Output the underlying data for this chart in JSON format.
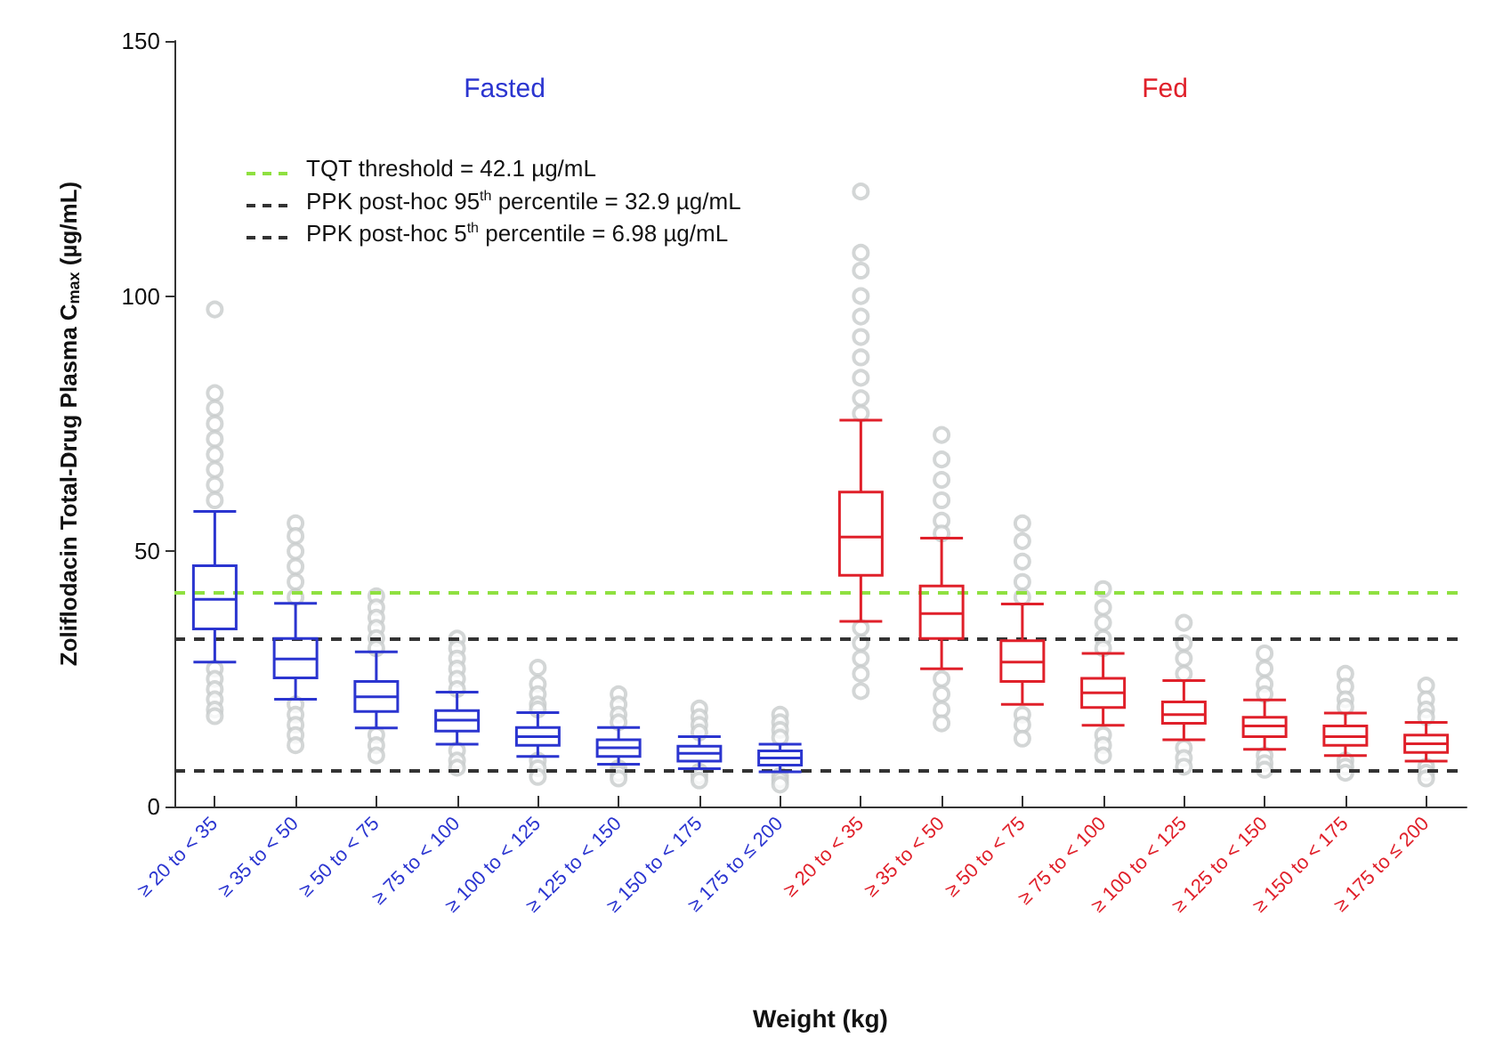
{
  "chart_data": {
    "type": "box",
    "xlabel": "Weight (kg)",
    "ylabel": "Zoliflodacin Total-Drug Plasma C$_{max}$ (µg/mL)",
    "categories": [
      "≥ 20 to < 35",
      "≥ 35 to < 50",
      "≥ 50 to < 75",
      "≥ 75 to < 100",
      "≥ 100 to < 125",
      "≥ 125 to < 150",
      "≥ 150 to < 175",
      "≥ 175 to ≤ 200",
      "≥ 20 to < 35",
      "≥ 35 to < 50",
      "≥ 50 to < 75",
      "≥ 75 to < 100",
      "≥ 100 to < 125",
      "≥ 125 to < 150",
      "≥ 150 to < 175",
      "≥ 175 to ≤ 200"
    ],
    "colors": [
      "#2b35d0",
      "#2b35d0",
      "#2b35d0",
      "#2b35d0",
      "#2b35d0",
      "#2b35d0",
      "#2b35d0",
      "#2b35d0",
      "#e0202a",
      "#e0202a",
      "#e0202a",
      "#e0202a",
      "#e0202a",
      "#e0202a",
      "#e0202a",
      "#e0202a"
    ],
    "boxes": [
      {
        "low": 28.3,
        "q1": 34.8,
        "median": 40.6,
        "q3": 47.2,
        "high": 57.8,
        "outliers": [
          97.4,
          81,
          78,
          75,
          72,
          69,
          66,
          63,
          60,
          27,
          25,
          23,
          21,
          19,
          17.7
        ]
      },
      {
        "low": 21.0,
        "q1": 25.2,
        "median": 28.9,
        "q3": 32.9,
        "high": 39.8,
        "outliers": [
          55.5,
          53,
          50,
          47,
          44,
          41,
          20,
          18,
          16,
          14,
          12
        ]
      },
      {
        "low": 15.4,
        "q1": 18.6,
        "median": 21.5,
        "q3": 24.5,
        "high": 30.3,
        "outliers": [
          41.2,
          39,
          37,
          35,
          33,
          31,
          14,
          12,
          10
        ]
      },
      {
        "low": 12.2,
        "q1": 14.8,
        "median": 16.9,
        "q3": 18.8,
        "high": 22.4,
        "outliers": [
          32.9,
          31,
          29,
          27,
          25,
          23,
          11,
          9,
          7.6
        ]
      },
      {
        "low": 9.8,
        "q1": 12.0,
        "median": 13.7,
        "q3": 15.5,
        "high": 18.4,
        "outliers": [
          27.2,
          24,
          22,
          20,
          19,
          9,
          7.5,
          5.8
        ]
      },
      {
        "low": 8.3,
        "q1": 9.8,
        "median": 11.5,
        "q3": 13.1,
        "high": 15.5,
        "outliers": [
          22,
          20,
          18,
          16.5,
          7.5,
          6.5,
          5.5
        ]
      },
      {
        "low": 7.4,
        "q1": 8.9,
        "median": 10.4,
        "q3": 11.8,
        "high": 13.7,
        "outliers": [
          19.2,
          17.5,
          16,
          14.5,
          6.8,
          6,
          5.1
        ]
      },
      {
        "low": 6.8,
        "q1": 8.1,
        "median": 9.5,
        "q3": 10.9,
        "high": 12.2,
        "outliers": [
          18,
          16.5,
          15,
          13.5,
          6,
          5.2,
          4.3
        ]
      },
      {
        "low": 36.3,
        "q1": 45.3,
        "median": 52.8,
        "q3": 61.6,
        "high": 75.7,
        "outliers": [
          120.5,
          108.5,
          105,
          100,
          96,
          92,
          88,
          84,
          80,
          77,
          35,
          32,
          29,
          26,
          22.6
        ]
      },
      {
        "low": 27.0,
        "q1": 32.9,
        "median": 37.8,
        "q3": 43.2,
        "high": 52.6,
        "outliers": [
          72.8,
          68,
          64,
          60,
          56,
          53.5,
          25,
          22,
          19,
          16.3
        ]
      },
      {
        "low": 20.0,
        "q1": 24.5,
        "median": 28.3,
        "q3": 32.5,
        "high": 39.7,
        "outliers": [
          55.5,
          52,
          48,
          44,
          41,
          18,
          16,
          13.3
        ]
      },
      {
        "low": 15.9,
        "q1": 19.4,
        "median": 22.3,
        "q3": 25.1,
        "high": 30.0,
        "outliers": [
          42.6,
          39,
          36,
          33,
          31,
          14,
          12,
          10
        ]
      },
      {
        "low": 13.1,
        "q1": 16.3,
        "median": 18.0,
        "q3": 20.5,
        "high": 24.7,
        "outliers": [
          36,
          32,
          29,
          26,
          11.5,
          9.5,
          7.8
        ]
      },
      {
        "low": 11.2,
        "q1": 13.7,
        "median": 15.8,
        "q3": 17.5,
        "high": 20.9,
        "outliers": [
          30,
          27,
          24,
          22,
          10,
          8.5,
          7.2
        ]
      },
      {
        "low": 10.0,
        "q1": 12.0,
        "median": 13.7,
        "q3": 15.8,
        "high": 18.3,
        "outliers": [
          26,
          23.5,
          21,
          19.5,
          9,
          7.8,
          6.6
        ]
      },
      {
        "low": 8.9,
        "q1": 10.6,
        "median": 12.3,
        "q3": 14.0,
        "high": 16.5,
        "outliers": [
          23.7,
          21,
          19,
          17.5,
          7.8,
          6.6,
          5.5
        ]
      }
    ],
    "ylim": [
      0,
      150
    ],
    "yticks": [
      0,
      50,
      100,
      150
    ],
    "grid": false,
    "legend": "top left",
    "ref_lines": [
      {
        "axis": "y",
        "value": 42.1,
        "label": "TQT threshold = 42.1 µg/mL",
        "color": "#8fe040",
        "line_style": "dashed"
      },
      {
        "axis": "y",
        "value": 32.9,
        "label": "PPK post-hoc 95$^{th}$ percentile = 32.9 µg/mL",
        "color": "#333333",
        "line_style": "dashed"
      },
      {
        "axis": "y",
        "value": 6.98,
        "label": "PPK post-hoc 5$^{th}$ percentile = 6.98 µg/mL",
        "color": "#333333",
        "line_style": "dashed"
      }
    ],
    "annotations": [
      "Fasted",
      "Fed"
    ]
  }
}
